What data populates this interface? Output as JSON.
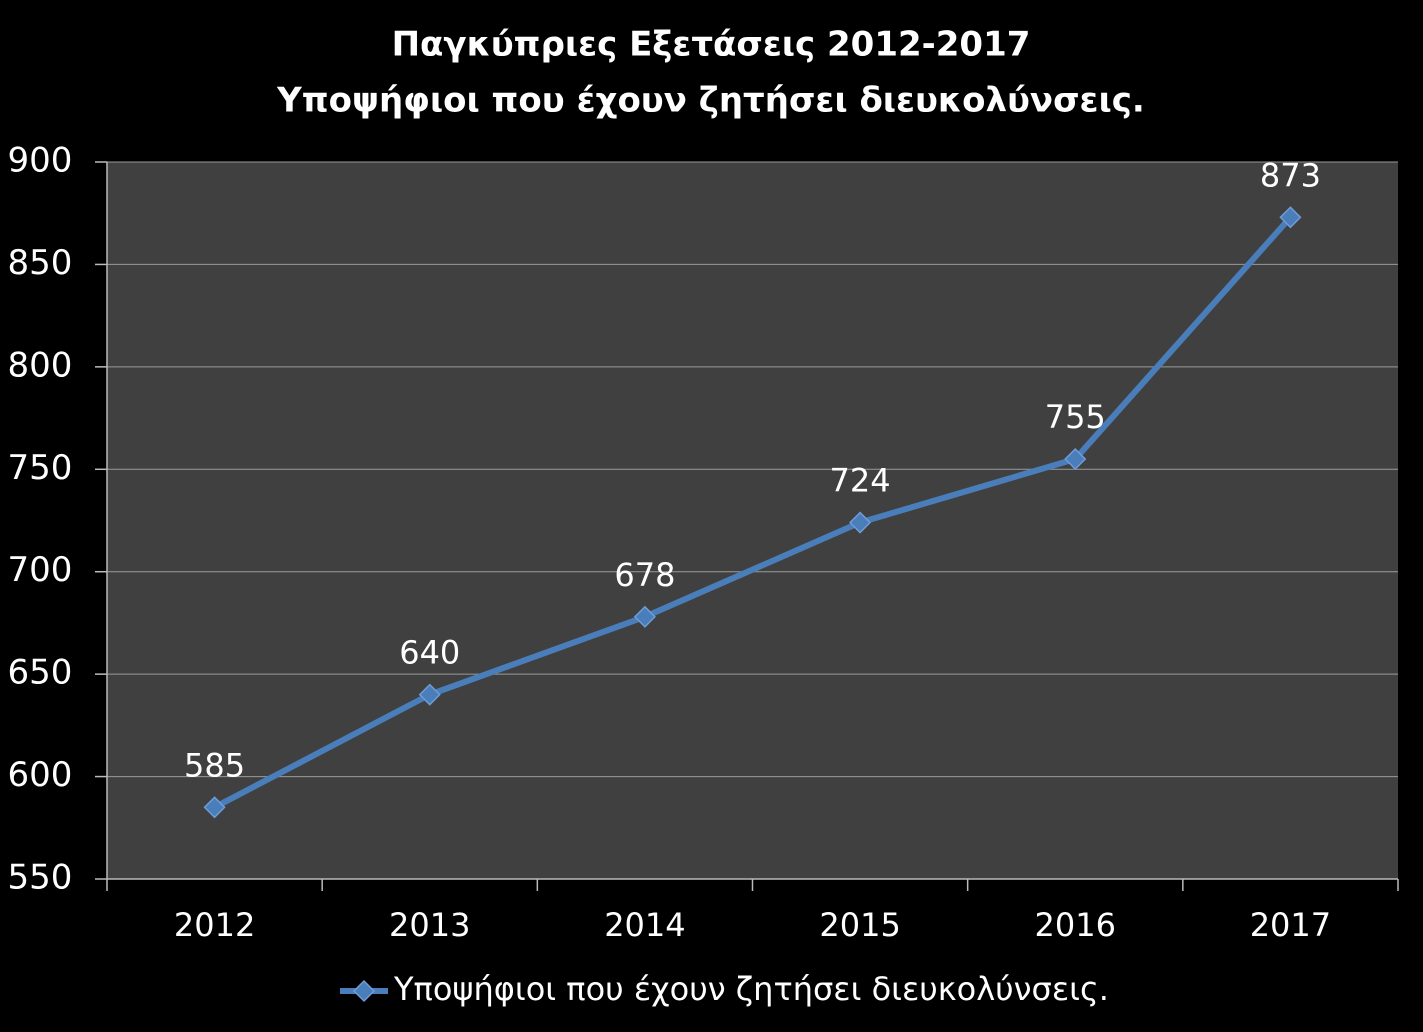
{
  "chart_data": {
    "type": "line",
    "title": "Παγκύπριες Εξετάσεις 2012-2017",
    "subtitle": "Υποψήφιοι που έχουν ζητήσει διευκολύνσεις.",
    "categories": [
      "2012",
      "2013",
      "2014",
      "2015",
      "2016",
      "2017"
    ],
    "series": [
      {
        "name": "Υποψήφιοι που έχουν ζητήσει διευκολύνσεις.",
        "color": "#4a7ebb",
        "values": [
          585,
          640,
          678,
          724,
          755,
          873
        ]
      }
    ],
    "ylim": [
      550,
      900
    ],
    "yticks": [
      550,
      600,
      650,
      700,
      750,
      800,
      850,
      900
    ],
    "grid": true,
    "legend": "bottom"
  }
}
